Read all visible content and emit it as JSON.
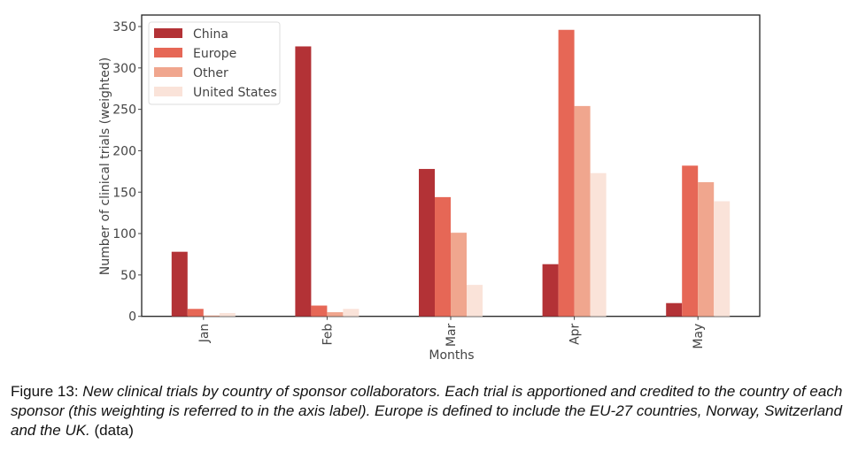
{
  "chart_data": {
    "type": "bar",
    "title": "",
    "xlabel": "Months",
    "ylabel": "Number of clinical trials (weighted)",
    "categories": [
      "Jan",
      "Feb",
      "Mar",
      "Apr",
      "May"
    ],
    "series": [
      {
        "name": "China",
        "color": "#b33236",
        "values": [
          78,
          326,
          178,
          63,
          16
        ]
      },
      {
        "name": "Europe",
        "color": "#e66756",
        "values": [
          9,
          13,
          144,
          346,
          182
        ]
      },
      {
        "name": "Other",
        "color": "#f0a68e",
        "values": [
          1,
          5,
          101,
          254,
          162
        ]
      },
      {
        "name": "United States",
        "color": "#fae3d9",
        "values": [
          4,
          9,
          38,
          173,
          139
        ]
      }
    ],
    "ylim": [
      0,
      360
    ],
    "yticks": [
      0,
      50,
      100,
      150,
      200,
      250,
      300,
      350
    ],
    "grid": false,
    "legend_position": "top-left"
  },
  "caption": {
    "label": "Figure 13:",
    "italic_text": "New clinical trials by country of sponsor collaborators. Each trial is apportioned and credited to the country of each sponsor (this weighting is referred to in the axis label). Europe is defined to include the EU-27 countries, Norway, Switzerland and the UK.",
    "suffix": "(data)"
  }
}
